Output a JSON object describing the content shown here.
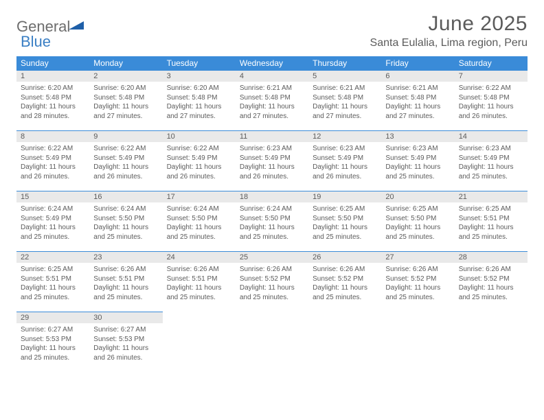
{
  "logo": {
    "general": "General",
    "blue": "Blue"
  },
  "title": {
    "month": "June 2025",
    "location": "Santa Eulalia, Lima region, Peru"
  },
  "colors": {
    "header_bg": "#3a8bd8",
    "header_text": "#ffffff",
    "daynum_bg": "#e9e9e9",
    "text": "#5b5b5b",
    "rule": "#3a8bd8",
    "logo_blue": "#3a7fc4",
    "logo_gray": "#6d6d6d",
    "page_bg": "#ffffff"
  },
  "weekdays": [
    "Sunday",
    "Monday",
    "Tuesday",
    "Wednesday",
    "Thursday",
    "Friday",
    "Saturday"
  ],
  "days": [
    {
      "n": "1",
      "sunrise": "6:20 AM",
      "sunset": "5:48 PM",
      "daylight": "11 hours and 28 minutes."
    },
    {
      "n": "2",
      "sunrise": "6:20 AM",
      "sunset": "5:48 PM",
      "daylight": "11 hours and 27 minutes."
    },
    {
      "n": "3",
      "sunrise": "6:20 AM",
      "sunset": "5:48 PM",
      "daylight": "11 hours and 27 minutes."
    },
    {
      "n": "4",
      "sunrise": "6:21 AM",
      "sunset": "5:48 PM",
      "daylight": "11 hours and 27 minutes."
    },
    {
      "n": "5",
      "sunrise": "6:21 AM",
      "sunset": "5:48 PM",
      "daylight": "11 hours and 27 minutes."
    },
    {
      "n": "6",
      "sunrise": "6:21 AM",
      "sunset": "5:48 PM",
      "daylight": "11 hours and 27 minutes."
    },
    {
      "n": "7",
      "sunrise": "6:22 AM",
      "sunset": "5:48 PM",
      "daylight": "11 hours and 26 minutes."
    },
    {
      "n": "8",
      "sunrise": "6:22 AM",
      "sunset": "5:49 PM",
      "daylight": "11 hours and 26 minutes."
    },
    {
      "n": "9",
      "sunrise": "6:22 AM",
      "sunset": "5:49 PM",
      "daylight": "11 hours and 26 minutes."
    },
    {
      "n": "10",
      "sunrise": "6:22 AM",
      "sunset": "5:49 PM",
      "daylight": "11 hours and 26 minutes."
    },
    {
      "n": "11",
      "sunrise": "6:23 AM",
      "sunset": "5:49 PM",
      "daylight": "11 hours and 26 minutes."
    },
    {
      "n": "12",
      "sunrise": "6:23 AM",
      "sunset": "5:49 PM",
      "daylight": "11 hours and 26 minutes."
    },
    {
      "n": "13",
      "sunrise": "6:23 AM",
      "sunset": "5:49 PM",
      "daylight": "11 hours and 25 minutes."
    },
    {
      "n": "14",
      "sunrise": "6:23 AM",
      "sunset": "5:49 PM",
      "daylight": "11 hours and 25 minutes."
    },
    {
      "n": "15",
      "sunrise": "6:24 AM",
      "sunset": "5:49 PM",
      "daylight": "11 hours and 25 minutes."
    },
    {
      "n": "16",
      "sunrise": "6:24 AM",
      "sunset": "5:50 PM",
      "daylight": "11 hours and 25 minutes."
    },
    {
      "n": "17",
      "sunrise": "6:24 AM",
      "sunset": "5:50 PM",
      "daylight": "11 hours and 25 minutes."
    },
    {
      "n": "18",
      "sunrise": "6:24 AM",
      "sunset": "5:50 PM",
      "daylight": "11 hours and 25 minutes."
    },
    {
      "n": "19",
      "sunrise": "6:25 AM",
      "sunset": "5:50 PM",
      "daylight": "11 hours and 25 minutes."
    },
    {
      "n": "20",
      "sunrise": "6:25 AM",
      "sunset": "5:50 PM",
      "daylight": "11 hours and 25 minutes."
    },
    {
      "n": "21",
      "sunrise": "6:25 AM",
      "sunset": "5:51 PM",
      "daylight": "11 hours and 25 minutes."
    },
    {
      "n": "22",
      "sunrise": "6:25 AM",
      "sunset": "5:51 PM",
      "daylight": "11 hours and 25 minutes."
    },
    {
      "n": "23",
      "sunrise": "6:26 AM",
      "sunset": "5:51 PM",
      "daylight": "11 hours and 25 minutes."
    },
    {
      "n": "24",
      "sunrise": "6:26 AM",
      "sunset": "5:51 PM",
      "daylight": "11 hours and 25 minutes."
    },
    {
      "n": "25",
      "sunrise": "6:26 AM",
      "sunset": "5:52 PM",
      "daylight": "11 hours and 25 minutes."
    },
    {
      "n": "26",
      "sunrise": "6:26 AM",
      "sunset": "5:52 PM",
      "daylight": "11 hours and 25 minutes."
    },
    {
      "n": "27",
      "sunrise": "6:26 AM",
      "sunset": "5:52 PM",
      "daylight": "11 hours and 25 minutes."
    },
    {
      "n": "28",
      "sunrise": "6:26 AM",
      "sunset": "5:52 PM",
      "daylight": "11 hours and 25 minutes."
    },
    {
      "n": "29",
      "sunrise": "6:27 AM",
      "sunset": "5:53 PM",
      "daylight": "11 hours and 25 minutes."
    },
    {
      "n": "30",
      "sunrise": "6:27 AM",
      "sunset": "5:53 PM",
      "daylight": "11 hours and 26 minutes."
    }
  ],
  "labels": {
    "sunrise": "Sunrise: ",
    "sunset": "Sunset: ",
    "daylight": "Daylight: "
  },
  "layout": {
    "first_weekday_index": 0,
    "cols": 7
  }
}
